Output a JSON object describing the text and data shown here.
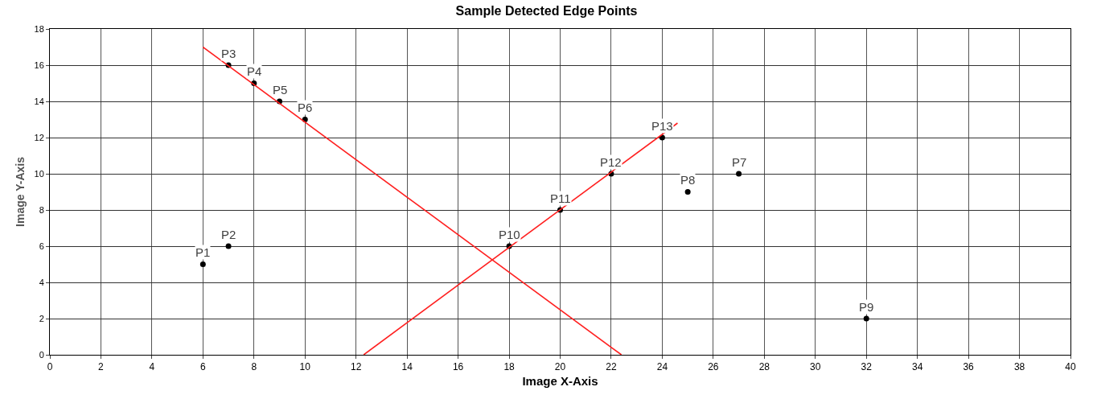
{
  "chart_data": {
    "type": "scatter",
    "title": "Sample Detected Edge Points",
    "xlabel": "Image X-Axis",
    "ylabel": "Image Y-Axis",
    "xlim": [
      0,
      40
    ],
    "xticks": [
      0,
      2,
      4,
      6,
      8,
      10,
      12,
      14,
      16,
      18,
      20,
      22,
      24,
      26,
      28,
      30,
      32,
      34,
      36,
      38,
      40
    ],
    "ylim": [
      0,
      18
    ],
    "yticks": [
      0,
      2,
      4,
      6,
      8,
      10,
      12,
      14,
      16,
      18
    ],
    "grid": true,
    "series": [
      {
        "color": "#000000",
        "marker": "circle",
        "x": [
          6,
          7,
          7,
          8,
          9,
          10,
          27,
          25,
          32,
          18,
          20,
          22,
          24
        ],
        "values": [
          5,
          6,
          16,
          15,
          14,
          13,
          10,
          9,
          2,
          6,
          8,
          10,
          12
        ]
      },
      {
        "type": "line",
        "color": "#ff2020",
        "marker": "none",
        "x": [
          6,
          22.4
        ],
        "values": [
          17,
          0
        ]
      },
      {
        "type": "line",
        "color": "#ff2020",
        "marker": "none",
        "x": [
          12.3,
          24.6
        ],
        "values": [
          0,
          12.8
        ]
      }
    ],
    "annotations": [
      {
        "text": "P1",
        "x": 6,
        "y": 5
      },
      {
        "text": "P2",
        "x": 7,
        "y": 6
      },
      {
        "text": "P3",
        "x": 7,
        "y": 16
      },
      {
        "text": "P4",
        "x": 8,
        "y": 15
      },
      {
        "text": "P5",
        "x": 9,
        "y": 14
      },
      {
        "text": "P6",
        "x": 10,
        "y": 13
      },
      {
        "text": "P7",
        "x": 27,
        "y": 10
      },
      {
        "text": "P8",
        "x": 25,
        "y": 9
      },
      {
        "text": "P9",
        "x": 32,
        "y": 2
      },
      {
        "text": "P10",
        "x": 18,
        "y": 6
      },
      {
        "text": "P11",
        "x": 20,
        "y": 8
      },
      {
        "text": "P12",
        "x": 22,
        "y": 10
      },
      {
        "text": "P13",
        "x": 24,
        "y": 12
      }
    ]
  }
}
